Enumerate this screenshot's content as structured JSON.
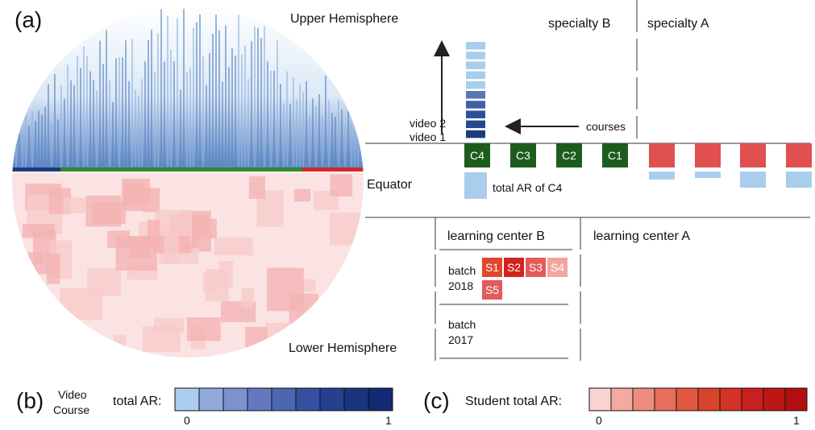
{
  "panel_a": {
    "label": "(a)",
    "upper_hemisphere": "Upper Hemisphere",
    "lower_hemisphere": "Lower Hemisphere",
    "equator": "Equator",
    "specialties": [
      "specialty B",
      "specialty A"
    ],
    "videos": [
      "video 2",
      "video 1"
    ],
    "courses_label": "courses",
    "courses": [
      "C4",
      "C3",
      "C2",
      "C1"
    ],
    "total_ar_label": "total AR of C4",
    "learning_centers": [
      "learning center B",
      "learning center A"
    ],
    "batches": [
      {
        "lines": [
          "batch",
          "2018"
        ]
      },
      {
        "lines": [
          "batch",
          "2017"
        ]
      }
    ],
    "students": [
      "S1",
      "S2",
      "S3",
      "S4",
      "S5"
    ]
  },
  "panel_b": {
    "label": "(b)",
    "title_lines": [
      "Video",
      "Course"
    ],
    "total_ar": "total AR:",
    "scale_min": "0",
    "scale_max": "1"
  },
  "panel_c": {
    "label": "(c)",
    "title": "Student total AR:",
    "scale_min": "0",
    "scale_max": "1"
  }
}
